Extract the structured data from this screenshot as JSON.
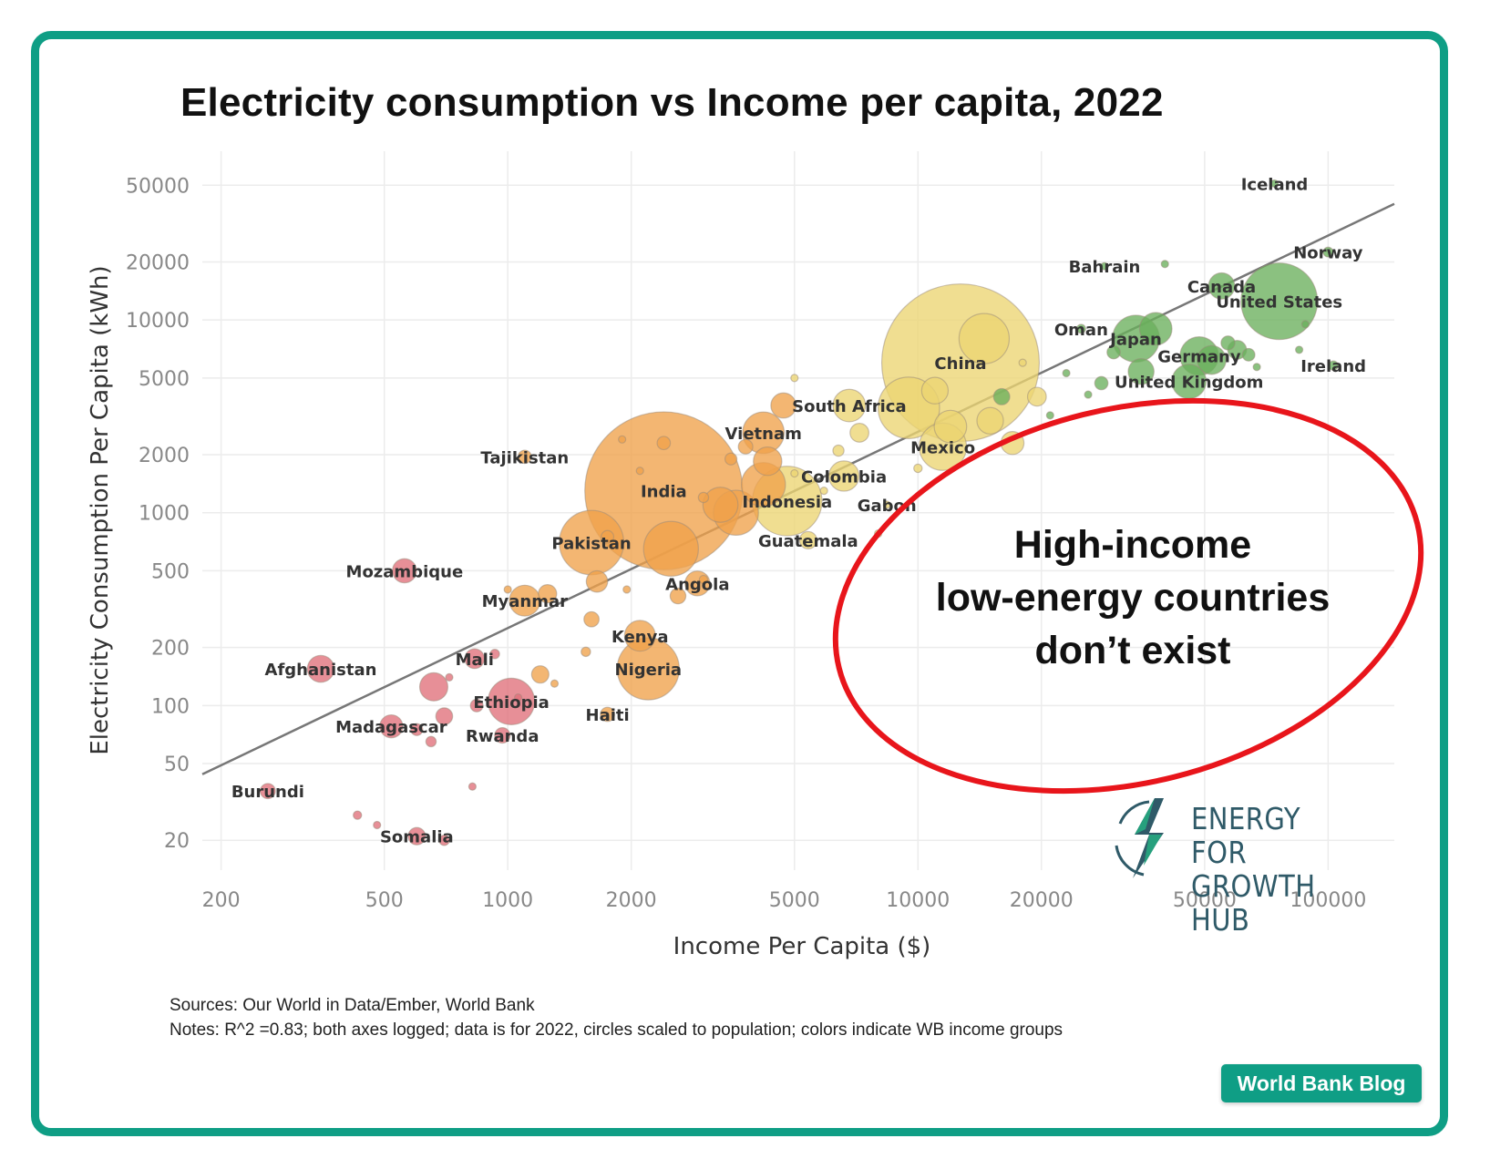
{
  "title": "Electricity consumption vs Income per capita, 2022",
  "sources_line": "Sources: Our World in Data/Ember, World Bank",
  "notes_line": "Notes: R^2 =0.83; both axes logged; data is for 2022, circles scaled to population; colors indicate WB income groups",
  "badge": "World Bank Blog",
  "logo": {
    "line1": "ENERGY FOR",
    "line2": "GROWTH HUB"
  },
  "colors": {
    "frame": "#0f9e85",
    "low": "#e0707a",
    "lower_middle": "#f0a24a",
    "upper_middle": "#ecd572",
    "high": "#6aaf5c",
    "callout": "#e8151b",
    "fit": "#777777"
  },
  "chart_data": {
    "type": "scatter",
    "xlabel": "Income Per Capita ($)",
    "ylabel": "Electricity Consumption Per Capita (kWh)",
    "x_scale": "log",
    "y_scale": "log",
    "xlim": [
      180,
      145000
    ],
    "ylim": [
      14,
      75000
    ],
    "x_ticks": [
      200,
      500,
      1000,
      2000,
      5000,
      10000,
      20000,
      50000,
      100000
    ],
    "y_ticks": [
      20,
      50,
      100,
      200,
      500,
      1000,
      2000,
      5000,
      10000,
      20000,
      50000
    ],
    "grid": true,
    "fit_line": {
      "from": [
        180,
        44
      ],
      "to": [
        145000,
        40000
      ]
    },
    "annotation": {
      "lines": [
        "High-income",
        "low-energy countries",
        "don’t exist"
      ]
    },
    "points": [
      {
        "label": "Iceland",
        "x": 74000,
        "y": 51000,
        "group": "high",
        "pop": 0.4
      },
      {
        "label": "Bahrain",
        "x": 28500,
        "y": 19000,
        "group": "high",
        "pop": 1.5
      },
      {
        "label": "Norway",
        "x": 100000,
        "y": 22500,
        "group": "high",
        "pop": 5.5
      },
      {
        "label": "Canada",
        "x": 55000,
        "y": 15000,
        "group": "high",
        "pop": 39
      },
      {
        "label": "United States",
        "x": 76000,
        "y": 12500,
        "group": "high",
        "pop": 333
      },
      {
        "label": "Oman",
        "x": 25000,
        "y": 9000,
        "group": "high",
        "pop": 4.5
      },
      {
        "label": "Japan",
        "x": 34000,
        "y": 8000,
        "group": "high",
        "pop": 125
      },
      {
        "label": "Germany",
        "x": 48500,
        "y": 6500,
        "group": "high",
        "pop": 84
      },
      {
        "label": "Ireland",
        "x": 103000,
        "y": 5800,
        "group": "high",
        "pop": 5
      },
      {
        "label": "United Kingdom",
        "x": 45800,
        "y": 4800,
        "group": "high",
        "pop": 67
      },
      {
        "label": "China",
        "x": 12700,
        "y": 6000,
        "group": "upper_middle",
        "pop": 1412
      },
      {
        "label": "South Africa",
        "x": 6800,
        "y": 3600,
        "group": "upper_middle",
        "pop": 60
      },
      {
        "label": "Mexico",
        "x": 11500,
        "y": 2200,
        "group": "upper_middle",
        "pop": 127
      },
      {
        "label": "Colombia",
        "x": 6600,
        "y": 1550,
        "group": "upper_middle",
        "pop": 52
      },
      {
        "label": "Gabon",
        "x": 8400,
        "y": 1100,
        "group": "upper_middle",
        "pop": 2.4
      },
      {
        "label": "Guatemala",
        "x": 5400,
        "y": 720,
        "group": "upper_middle",
        "pop": 17
      },
      {
        "label": "Vietnam",
        "x": 4200,
        "y": 2600,
        "group": "lower_middle",
        "pop": 98
      },
      {
        "label": "Indonesia",
        "x": 4800,
        "y": 1150,
        "group": "upper_middle",
        "pop": 275
      },
      {
        "label": "India",
        "x": 2400,
        "y": 1300,
        "group": "lower_middle",
        "pop": 1417
      },
      {
        "label": "Tajikistan",
        "x": 1100,
        "y": 1950,
        "group": "lower_middle",
        "pop": 10
      },
      {
        "label": "Pakistan",
        "x": 1600,
        "y": 700,
        "group": "lower_middle",
        "pop": 236
      },
      {
        "label": "Angola",
        "x": 2900,
        "y": 430,
        "group": "lower_middle",
        "pop": 35
      },
      {
        "label": "Kenya",
        "x": 2100,
        "y": 230,
        "group": "lower_middle",
        "pop": 54
      },
      {
        "label": "Nigeria",
        "x": 2200,
        "y": 155,
        "group": "lower_middle",
        "pop": 219
      },
      {
        "label": "Haiti",
        "x": 1750,
        "y": 90,
        "group": "lower_middle",
        "pop": 11.5
      },
      {
        "label": "Myanmar",
        "x": 1100,
        "y": 350,
        "group": "lower_middle",
        "pop": 54
      },
      {
        "label": "Mozambique",
        "x": 560,
        "y": 500,
        "group": "low",
        "pop": 33
      },
      {
        "label": "Mali",
        "x": 830,
        "y": 175,
        "group": "low",
        "pop": 22
      },
      {
        "label": "Afghanistan",
        "x": 350,
        "y": 155,
        "group": "low",
        "pop": 41
      },
      {
        "label": "Ethiopia",
        "x": 1020,
        "y": 105,
        "group": "low",
        "pop": 123
      },
      {
        "label": "Madagascar",
        "x": 520,
        "y": 78,
        "group": "low",
        "pop": 30
      },
      {
        "label": "Rwanda",
        "x": 970,
        "y": 70,
        "group": "low",
        "pop": 13.5
      },
      {
        "label": "Burundi",
        "x": 260,
        "y": 36,
        "group": "low",
        "pop": 13
      },
      {
        "label": "Somalia",
        "x": 600,
        "y": 21,
        "group": "low",
        "pop": 17
      },
      {
        "label": "",
        "x": 40000,
        "y": 19500,
        "group": "high",
        "pop": 3
      },
      {
        "label": "",
        "x": 38000,
        "y": 9000,
        "group": "high",
        "pop": 60
      },
      {
        "label": "",
        "x": 60000,
        "y": 7000,
        "group": "high",
        "pop": 20
      },
      {
        "label": "",
        "x": 52000,
        "y": 6200,
        "group": "high",
        "pop": 47
      },
      {
        "label": "",
        "x": 35000,
        "y": 5400,
        "group": "high",
        "pop": 38
      },
      {
        "label": "",
        "x": 30000,
        "y": 6800,
        "group": "high",
        "pop": 10
      },
      {
        "label": "",
        "x": 28000,
        "y": 4700,
        "group": "high",
        "pop": 10
      },
      {
        "label": "",
        "x": 23000,
        "y": 5300,
        "group": "high",
        "pop": 3
      },
      {
        "label": "",
        "x": 64000,
        "y": 6600,
        "group": "high",
        "pop": 9
      },
      {
        "label": "",
        "x": 57000,
        "y": 7600,
        "group": "high",
        "pop": 11
      },
      {
        "label": "",
        "x": 67000,
        "y": 5700,
        "group": "high",
        "pop": 2
      },
      {
        "label": "",
        "x": 85000,
        "y": 7000,
        "group": "high",
        "pop": 1
      },
      {
        "label": "",
        "x": 88000,
        "y": 9500,
        "group": "high",
        "pop": 2
      },
      {
        "label": "",
        "x": 16000,
        "y": 4000,
        "group": "high",
        "pop": 15
      },
      {
        "label": "",
        "x": 21000,
        "y": 3200,
        "group": "high",
        "pop": 2
      },
      {
        "label": "",
        "x": 26000,
        "y": 4100,
        "group": "high",
        "pop": 2
      },
      {
        "label": "",
        "x": 14500,
        "y": 8000,
        "group": "upper_middle",
        "pop": 143
      },
      {
        "label": "",
        "x": 15000,
        "y": 3000,
        "group": "upper_middle",
        "pop": 40
      },
      {
        "label": "",
        "x": 9500,
        "y": 3500,
        "group": "upper_middle",
        "pop": 215
      },
      {
        "label": "",
        "x": 17000,
        "y": 2300,
        "group": "upper_middle",
        "pop": 30
      },
      {
        "label": "",
        "x": 19500,
        "y": 4000,
        "group": "upper_middle",
        "pop": 20
      },
      {
        "label": "",
        "x": 11000,
        "y": 4300,
        "group": "upper_middle",
        "pop": 40
      },
      {
        "label": "",
        "x": 12000,
        "y": 2800,
        "group": "upper_middle",
        "pop": 60
      },
      {
        "label": "",
        "x": 7200,
        "y": 2600,
        "group": "upper_middle",
        "pop": 20
      },
      {
        "label": "",
        "x": 6400,
        "y": 2100,
        "group": "upper_middle",
        "pop": 7
      },
      {
        "label": "",
        "x": 10000,
        "y": 1700,
        "group": "upper_middle",
        "pop": 4
      },
      {
        "label": "",
        "x": 18000,
        "y": 6000,
        "group": "upper_middle",
        "pop": 2
      },
      {
        "label": "",
        "x": 8000,
        "y": 780,
        "group": "upper_middle",
        "pop": 0.8
      },
      {
        "label": "",
        "x": 5900,
        "y": 1300,
        "group": "upper_middle",
        "pop": 3
      },
      {
        "label": "",
        "x": 5000,
        "y": 1600,
        "group": "upper_middle",
        "pop": 3
      },
      {
        "label": "",
        "x": 5000,
        "y": 5000,
        "group": "upper_middle",
        "pop": 1
      },
      {
        "label": "",
        "x": 4700,
        "y": 3600,
        "group": "lower_middle",
        "pop": 36
      },
      {
        "label": "",
        "x": 4300,
        "y": 1850,
        "group": "lower_middle",
        "pop": 46
      },
      {
        "label": "",
        "x": 4200,
        "y": 1400,
        "group": "lower_middle",
        "pop": 110
      },
      {
        "label": "",
        "x": 3600,
        "y": 1000,
        "group": "lower_middle",
        "pop": 115
      },
      {
        "label": "",
        "x": 3300,
        "y": 1100,
        "group": "lower_middle",
        "pop": 70
      },
      {
        "label": "",
        "x": 2500,
        "y": 650,
        "group": "lower_middle",
        "pop": 171
      },
      {
        "label": "",
        "x": 2400,
        "y": 2300,
        "group": "lower_middle",
        "pop": 10
      },
      {
        "label": "",
        "x": 1900,
        "y": 2400,
        "group": "lower_middle",
        "pop": 2
      },
      {
        "label": "",
        "x": 2100,
        "y": 1650,
        "group": "lower_middle",
        "pop": 3
      },
      {
        "label": "",
        "x": 3000,
        "y": 1200,
        "group": "lower_middle",
        "pop": 6
      },
      {
        "label": "",
        "x": 3500,
        "y": 1900,
        "group": "lower_middle",
        "pop": 8
      },
      {
        "label": "",
        "x": 3800,
        "y": 2200,
        "group": "lower_middle",
        "pop": 12
      },
      {
        "label": "",
        "x": 1250,
        "y": 380,
        "group": "lower_middle",
        "pop": 19
      },
      {
        "label": "",
        "x": 1650,
        "y": 440,
        "group": "lower_middle",
        "pop": 26
      },
      {
        "label": "",
        "x": 1600,
        "y": 280,
        "group": "lower_middle",
        "pop": 13
      },
      {
        "label": "",
        "x": 1550,
        "y": 190,
        "group": "lower_middle",
        "pop": 5
      },
      {
        "label": "",
        "x": 1750,
        "y": 750,
        "group": "lower_middle",
        "pop": 9
      },
      {
        "label": "",
        "x": 1200,
        "y": 145,
        "group": "lower_middle",
        "pop": 17
      },
      {
        "label": "",
        "x": 1300,
        "y": 130,
        "group": "lower_middle",
        "pop": 3
      },
      {
        "label": "",
        "x": 1950,
        "y": 400,
        "group": "lower_middle",
        "pop": 1
      },
      {
        "label": "",
        "x": 2600,
        "y": 370,
        "group": "lower_middle",
        "pop": 14
      },
      {
        "label": "",
        "x": 3000,
        "y": 450,
        "group": "lower_middle",
        "pop": 4
      },
      {
        "label": "",
        "x": 1000,
        "y": 400,
        "group": "lower_middle",
        "pop": 1
      },
      {
        "label": "",
        "x": 660,
        "y": 125,
        "group": "low",
        "pop": 45
      },
      {
        "label": "",
        "x": 700,
        "y": 88,
        "group": "low",
        "pop": 16
      },
      {
        "label": "",
        "x": 600,
        "y": 75,
        "group": "low",
        "pop": 8
      },
      {
        "label": "",
        "x": 650,
        "y": 65,
        "group": "low",
        "pop": 6
      },
      {
        "label": "",
        "x": 840,
        "y": 100,
        "group": "low",
        "pop": 9
      },
      {
        "label": "",
        "x": 930,
        "y": 185,
        "group": "low",
        "pop": 5
      },
      {
        "label": "",
        "x": 720,
        "y": 140,
        "group": "low",
        "pop": 2
      },
      {
        "label": "",
        "x": 700,
        "y": 20,
        "group": "low",
        "pop": 6
      },
      {
        "label": "",
        "x": 480,
        "y": 24,
        "group": "low",
        "pop": 3
      },
      {
        "label": "",
        "x": 430,
        "y": 27,
        "group": "low",
        "pop": 4
      },
      {
        "label": "",
        "x": 820,
        "y": 38,
        "group": "low",
        "pop": 0.3
      },
      {
        "label": "",
        "x": 1060,
        "y": 110,
        "group": "low",
        "pop": 1
      }
    ]
  }
}
